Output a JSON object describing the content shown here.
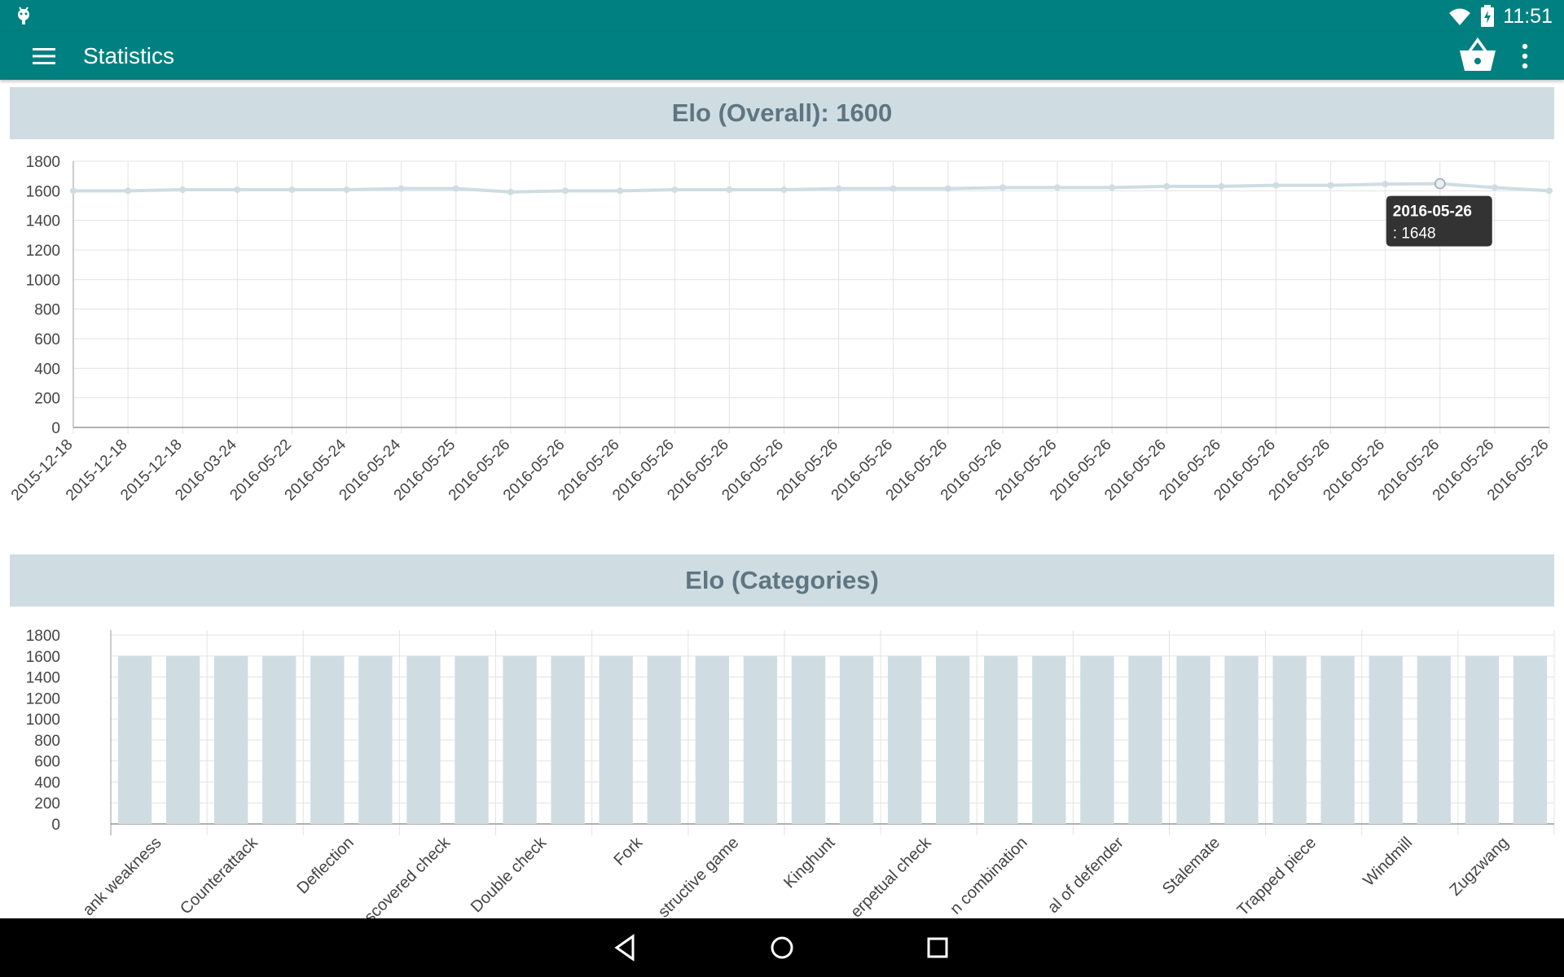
{
  "status_bar": {
    "time": "11:51"
  },
  "app_bar": {
    "title": "Statistics"
  },
  "sections": {
    "overall": {
      "title": "Elo (Overall): 1600"
    },
    "categories": {
      "title": "Elo (Categories)"
    }
  },
  "tooltip": {
    "date": "2016-05-26",
    "value": ": 1648"
  },
  "colors": {
    "primary": "#008080",
    "header_bg": "#cfdde3",
    "header_text": "#5f7582",
    "series": "#cfdde3",
    "tooltip_bg": "#333333"
  },
  "icons": [
    "android-icon",
    "menu-icon",
    "basket-icon",
    "more-vert-icon",
    "wifi-icon",
    "battery-icon",
    "back-icon",
    "home-icon",
    "recents-icon"
  ],
  "chart_data": [
    {
      "type": "line",
      "x": [
        "2015-12-18",
        "2015-12-18",
        "2015-12-18",
        "2016-03-24",
        "2016-05-22",
        "2016-05-24",
        "2016-05-24",
        "2016-05-25",
        "2016-05-26",
        "2016-05-26",
        "2016-05-26",
        "2016-05-26",
        "2016-05-26",
        "2016-05-26",
        "2016-05-26",
        "2016-05-26",
        "2016-05-26",
        "2016-05-26",
        "2016-05-26",
        "2016-05-26",
        "2016-05-26",
        "2016-05-26",
        "2016-05-26",
        "2016-05-26",
        "2016-05-26",
        "2016-05-26",
        "2016-05-26",
        "2016-05-26"
      ],
      "values": [
        1600,
        1600,
        1607,
        1607,
        1607,
        1607,
        1615,
        1615,
        1592,
        1600,
        1600,
        1607,
        1607,
        1607,
        1615,
        1615,
        1615,
        1622,
        1622,
        1622,
        1630,
        1630,
        1637,
        1637,
        1645,
        1648,
        1622,
        1600
      ],
      "ylim": [
        0,
        1800
      ],
      "yticks": [
        0,
        200,
        400,
        600,
        800,
        1000,
        1200,
        1400,
        1600,
        1800
      ],
      "grid": true,
      "highlight_index": 25
    },
    {
      "type": "bar",
      "categories": [
        "Back rank weakness",
        "",
        "Counterattack",
        "",
        "Deflection",
        "",
        "Discovered check",
        "",
        "Double check",
        "",
        "Fork",
        "",
        "Destructive game",
        "",
        "Kinghunt",
        "",
        "Perpetual check",
        "",
        "Mating combination",
        "",
        "Removal of defender",
        "",
        "Stalemate",
        "",
        "Trapped piece",
        "",
        "Windmill",
        "",
        "Zugzwang",
        ""
      ],
      "visible_labels": [
        "ank weakness",
        "Counterattack",
        "Deflection",
        "scovered check",
        "Double check",
        "Fork",
        "structive game",
        "Kinghunt",
        "erpetual check",
        "n combination",
        "al of defender",
        "Stalemate",
        "Trapped piece",
        "Windmill",
        "Zugzwang"
      ],
      "values": [
        1600,
        1600,
        1600,
        1600,
        1600,
        1600,
        1600,
        1600,
        1600,
        1600,
        1600,
        1600,
        1600,
        1600,
        1600,
        1600,
        1600,
        1600,
        1600,
        1600,
        1600,
        1600,
        1600,
        1600,
        1600,
        1600,
        1600,
        1600,
        1600,
        1600
      ],
      "ylim": [
        0,
        1800
      ],
      "yticks": [
        0,
        200,
        400,
        600,
        800,
        1000,
        1200,
        1400,
        1600,
        1800
      ],
      "grid": true
    }
  ]
}
